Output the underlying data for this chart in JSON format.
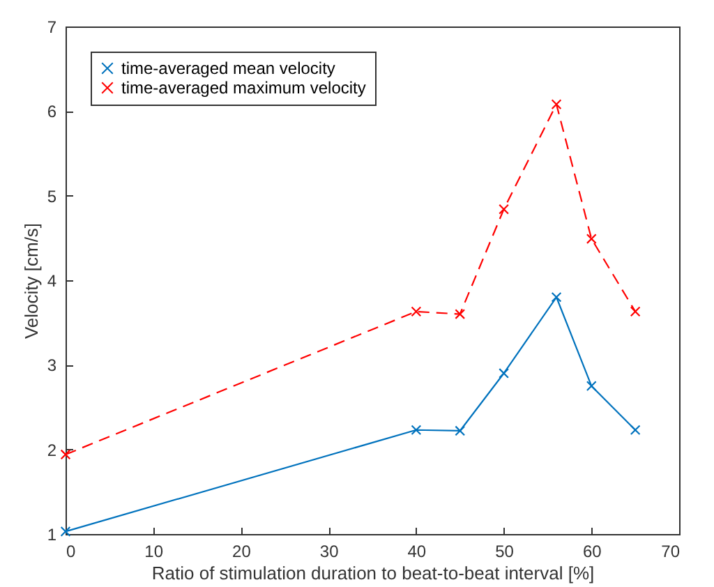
{
  "chart_data": {
    "type": "line",
    "xlabel": "Ratio of stimulation duration to beat-to-beat interval [%]",
    "ylabel": "Velocity [cm/s]",
    "x": [
      0,
      40,
      45,
      50,
      56,
      60,
      65
    ],
    "series": [
      {
        "name": "time-averaged mean velocity",
        "color": "#0072bd",
        "line_style": "solid",
        "values": [
          1.03,
          2.23,
          2.22,
          2.9,
          3.8,
          2.75,
          2.23
        ]
      },
      {
        "name": "time-averaged maximum velocity",
        "color": "#ff0000",
        "line_style": "dashed",
        "values": [
          1.94,
          3.63,
          3.6,
          4.84,
          6.08,
          4.49,
          3.63
        ]
      }
    ],
    "xlim": [
      0,
      70
    ],
    "xticks": [
      0,
      10,
      20,
      30,
      40,
      50,
      60,
      70
    ],
    "ylim": [
      1,
      7
    ],
    "yticks": [
      1,
      2,
      3,
      4,
      5,
      6,
      7
    ],
    "grid": false,
    "legend": "top left",
    "marker": "cross"
  }
}
